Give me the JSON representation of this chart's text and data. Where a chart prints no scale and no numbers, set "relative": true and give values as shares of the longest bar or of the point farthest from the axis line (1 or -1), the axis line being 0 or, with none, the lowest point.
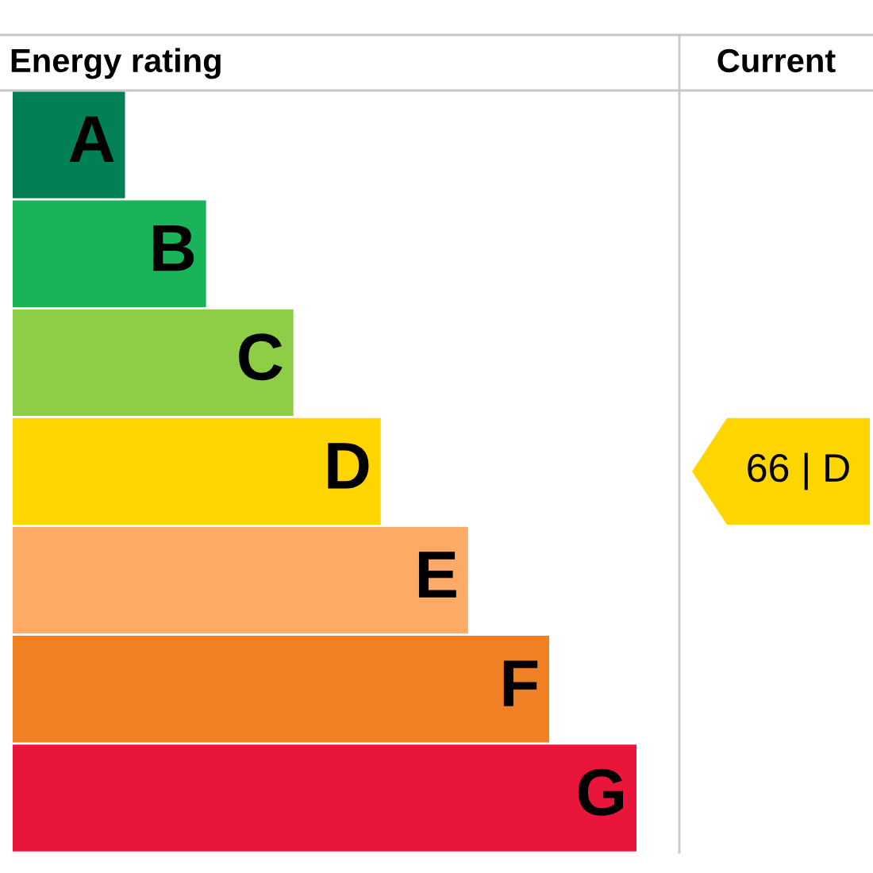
{
  "chart_data": {
    "type": "bar",
    "orientation": "horizontal",
    "relative": true,
    "title": "Energy rating",
    "categories": [
      "A",
      "B",
      "C",
      "D",
      "E",
      "F",
      "G"
    ],
    "values": [
      0.18,
      0.31,
      0.45,
      0.59,
      0.73,
      0.86,
      1
    ],
    "colors": [
      "#008054",
      "#19b459",
      "#8dce46",
      "#ffd500",
      "#fcaa65",
      "#ef8023",
      "#e9153b"
    ],
    "annotations": [
      "Current",
      "66 | D"
    ]
  }
}
